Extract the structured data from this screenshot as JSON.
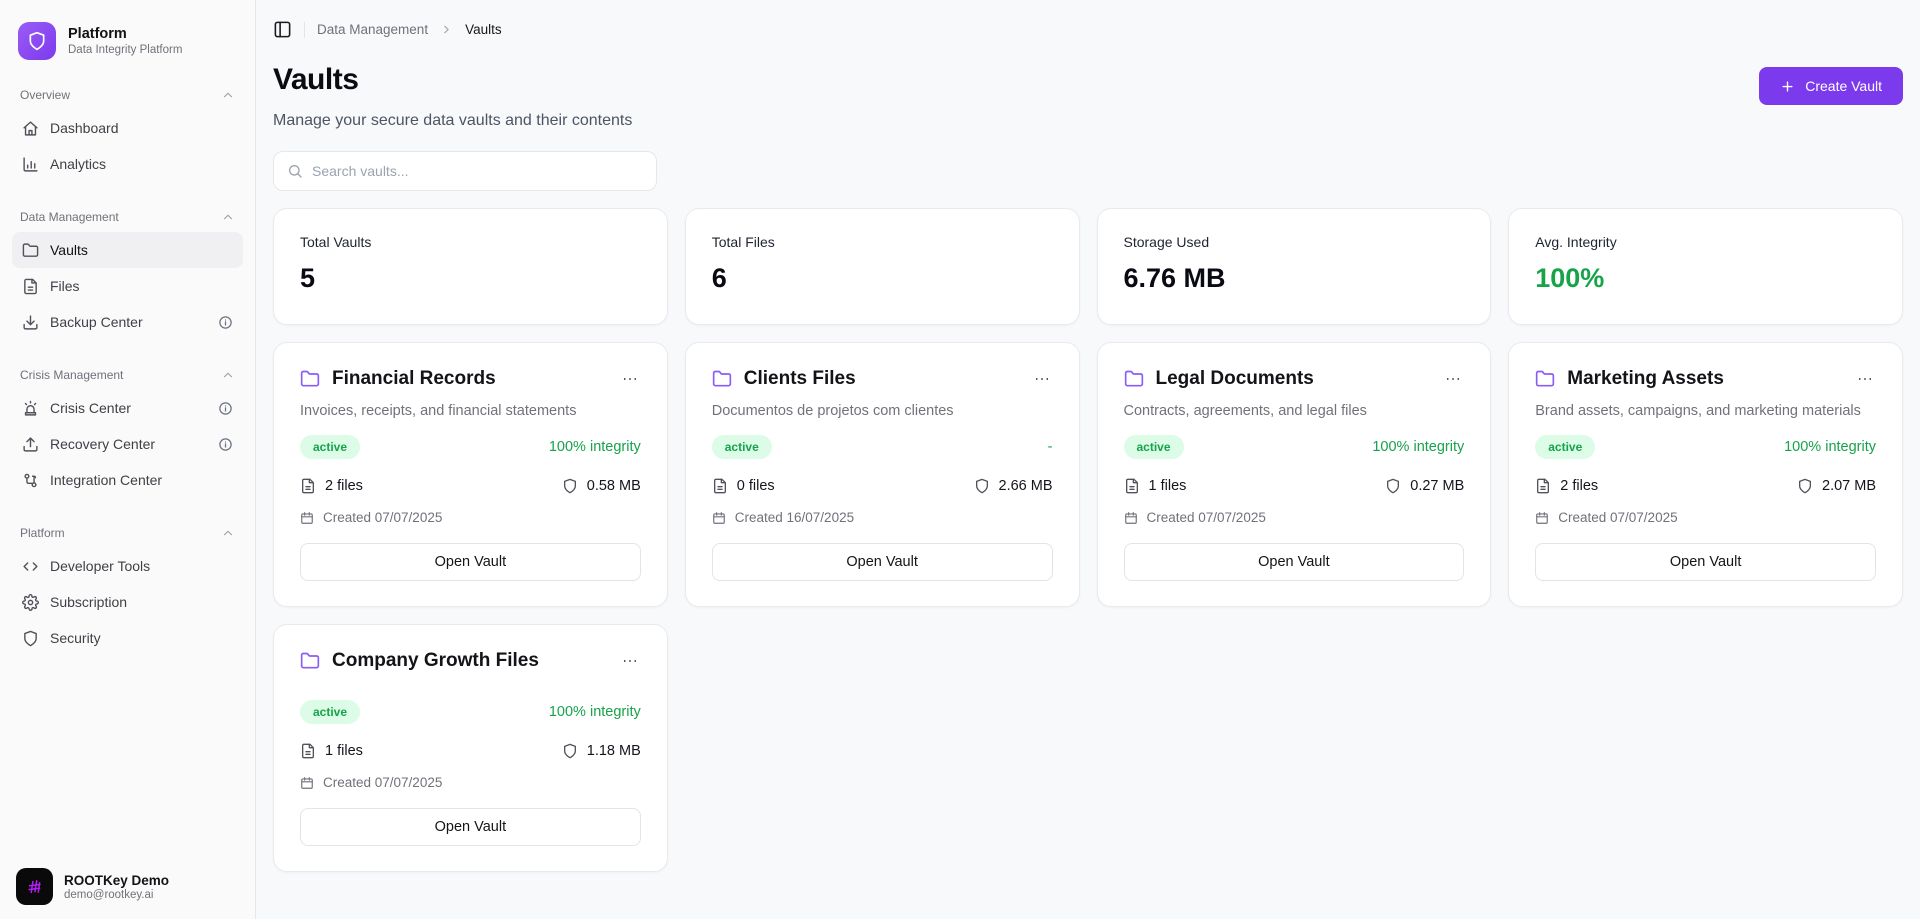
{
  "colors": {
    "accent": "#7c3aed",
    "accent-soft": "#8b5cf6",
    "green": "#16a34a",
    "green-bg": "#dcfce7",
    "text": "#18181b",
    "muted": "#71717a",
    "border": "#e5e7eb",
    "page-bg": "#f8f9fb",
    "sidebar-bg": "#fafafa",
    "card-bg": "#ffffff",
    "avatar-bg": "#0a0a0a",
    "avatar-glyph": "#b61df2"
  },
  "sidebar": {
    "logo": {
      "title": "Platform",
      "subtitle": "Data Integrity Platform"
    },
    "sections": [
      {
        "label": "Overview",
        "items": [
          {
            "label": "Dashboard",
            "icon": "home"
          },
          {
            "label": "Analytics",
            "icon": "chart"
          }
        ]
      },
      {
        "label": "Data Management",
        "items": [
          {
            "label": "Vaults",
            "icon": "folder",
            "active": true
          },
          {
            "label": "Files",
            "icon": "file-text"
          },
          {
            "label": "Backup Center",
            "icon": "download",
            "info": true
          }
        ]
      },
      {
        "label": "Crisis Management",
        "items": [
          {
            "label": "Crisis Center",
            "icon": "siren",
            "info": true
          },
          {
            "label": "Recovery Center",
            "icon": "upload",
            "info": true
          },
          {
            "label": "Integration Center",
            "icon": "workflow"
          }
        ]
      },
      {
        "label": "Platform",
        "items": [
          {
            "label": "Developer Tools",
            "icon": "code"
          },
          {
            "label": "Subscription",
            "icon": "gear"
          },
          {
            "label": "Security",
            "icon": "shield"
          }
        ]
      }
    ],
    "user": {
      "name": "ROOTKey Demo",
      "email": "demo@rootkey.ai"
    }
  },
  "breadcrumb": {
    "parent": "Data Management",
    "current": "Vaults"
  },
  "header": {
    "title": "Vaults",
    "subtitle": "Manage your secure data vaults and their contents",
    "create_button": "Create Vault"
  },
  "search": {
    "placeholder": "Search vaults..."
  },
  "stats": [
    {
      "label": "Total Vaults",
      "value": "5"
    },
    {
      "label": "Total Files",
      "value": "6"
    },
    {
      "label": "Storage Used",
      "value": "6.76 MB"
    },
    {
      "label": "Avg. Integrity",
      "value": "100%",
      "color": "green"
    }
  ],
  "labels": {
    "open_vault": "Open Vault"
  },
  "vaults": [
    {
      "name": "Financial Records",
      "description": "Invoices, receipts, and financial statements",
      "status": "active",
      "integrity": "100% integrity",
      "files": "2 files",
      "size": "0.58 MB",
      "created": "Created 07/07/2025"
    },
    {
      "name": "Clients Files",
      "description": "Documentos de projetos com clientes",
      "status": "active",
      "integrity": "-",
      "files": "0 files",
      "size": "2.66 MB",
      "created": "Created 16/07/2025"
    },
    {
      "name": "Legal Documents",
      "description": "Contracts, agreements, and legal files",
      "status": "active",
      "integrity": "100% integrity",
      "files": "1 files",
      "size": "0.27 MB",
      "created": "Created 07/07/2025"
    },
    {
      "name": "Marketing Assets",
      "description": "Brand assets, campaigns, and marketing materials",
      "status": "active",
      "integrity": "100% integrity",
      "files": "2 files",
      "size": "2.07 MB",
      "created": "Created 07/07/2025"
    },
    {
      "name": "Company Growth Files",
      "description": "",
      "status": "active",
      "integrity": "100% integrity",
      "files": "1 files",
      "size": "1.18 MB",
      "created": "Created 07/07/2025"
    }
  ]
}
